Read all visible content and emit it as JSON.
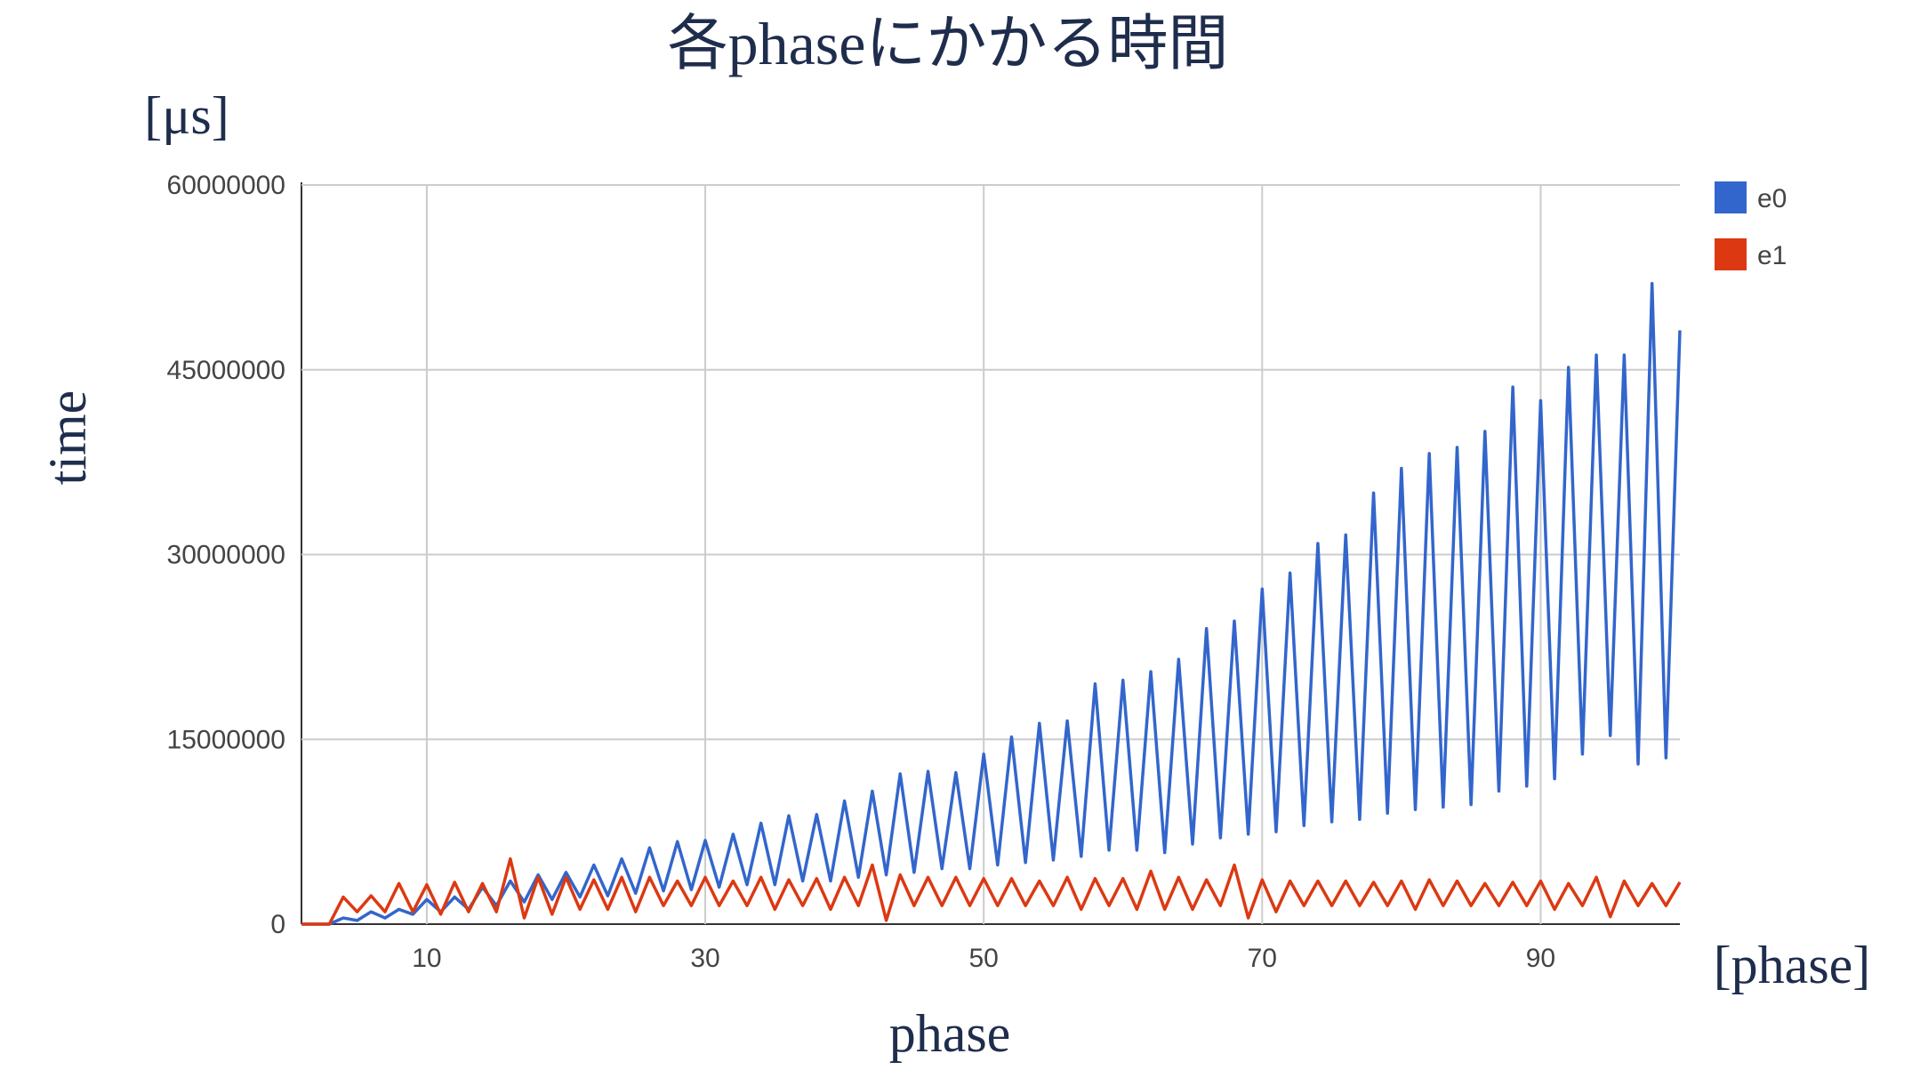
{
  "chart_data": {
    "type": "line",
    "title": "各phaseにかかる時間",
    "y_unit": "[μs]",
    "x_unit": "[phase]",
    "xlabel": "phase",
    "ylabel": "time",
    "x": [
      1,
      2,
      3,
      4,
      5,
      6,
      7,
      8,
      9,
      10,
      11,
      12,
      13,
      14,
      15,
      16,
      17,
      18,
      19,
      20,
      21,
      22,
      23,
      24,
      25,
      26,
      27,
      28,
      29,
      30,
      31,
      32,
      33,
      34,
      35,
      36,
      37,
      38,
      39,
      40,
      41,
      42,
      43,
      44,
      45,
      46,
      47,
      48,
      49,
      50,
      51,
      52,
      53,
      54,
      55,
      56,
      57,
      58,
      59,
      60,
      61,
      62,
      63,
      64,
      65,
      66,
      67,
      68,
      69,
      70,
      71,
      72,
      73,
      74,
      75,
      76,
      77,
      78,
      79,
      80,
      81,
      82,
      83,
      84,
      85,
      86,
      87,
      88,
      89,
      90,
      91,
      92,
      93,
      94,
      95,
      96,
      97,
      98,
      99,
      100
    ],
    "series": [
      {
        "name": "e0",
        "color": "#3366cc",
        "values": [
          0,
          0,
          0,
          500000,
          300000,
          1000000,
          500000,
          1200000,
          800000,
          2000000,
          1000000,
          2200000,
          1200000,
          3000000,
          1500000,
          3500000,
          1800000,
          4000000,
          2000000,
          4200000,
          2200000,
          4800000,
          2300000,
          5300000,
          2500000,
          6200000,
          2700000,
          6700000,
          2800000,
          6800000,
          3000000,
          7300000,
          3200000,
          8200000,
          3200000,
          8800000,
          3500000,
          8900000,
          3500000,
          10000000,
          3800000,
          10800000,
          4000000,
          12200000,
          4200000,
          12400000,
          4500000,
          12300000,
          4500000,
          13800000,
          4800000,
          15200000,
          5000000,
          16300000,
          5200000,
          16500000,
          5500000,
          19500000,
          6000000,
          19800000,
          6000000,
          20500000,
          5800000,
          21500000,
          6500000,
          24000000,
          7000000,
          24600000,
          7300000,
          27200000,
          7500000,
          28500000,
          8000000,
          30900000,
          8300000,
          31600000,
          8500000,
          35000000,
          9000000,
          37000000,
          9300000,
          38200000,
          9500000,
          38700000,
          9700000,
          40000000,
          10800000,
          43600000,
          11200000,
          42500000,
          11800000,
          45200000,
          13800000,
          46200000,
          15300000,
          46200000,
          13000000,
          52000000,
          13500000,
          48200000
        ]
      },
      {
        "name": "e1",
        "color": "#dc3912",
        "values": [
          0,
          0,
          0,
          2200000,
          1000000,
          2300000,
          1000000,
          3300000,
          1000000,
          3200000,
          800000,
          3400000,
          1000000,
          3300000,
          1000000,
          5300000,
          500000,
          3800000,
          800000,
          3800000,
          1200000,
          3600000,
          1200000,
          3800000,
          1000000,
          3800000,
          1500000,
          3500000,
          1500000,
          3800000,
          1500000,
          3500000,
          1500000,
          3800000,
          1200000,
          3600000,
          1500000,
          3700000,
          1200000,
          3800000,
          1500000,
          4800000,
          300000,
          4000000,
          1500000,
          3800000,
          1500000,
          3800000,
          1500000,
          3700000,
          1500000,
          3700000,
          1500000,
          3500000,
          1500000,
          3800000,
          1200000,
          3700000,
          1500000,
          3700000,
          1200000,
          4300000,
          1200000,
          3800000,
          1200000,
          3600000,
          1500000,
          4800000,
          500000,
          3600000,
          1000000,
          3500000,
          1500000,
          3500000,
          1500000,
          3500000,
          1500000,
          3400000,
          1500000,
          3500000,
          1200000,
          3600000,
          1500000,
          3500000,
          1500000,
          3300000,
          1500000,
          3400000,
          1500000,
          3500000,
          1200000,
          3300000,
          1500000,
          3800000,
          600000,
          3500000,
          1500000,
          3300000,
          1500000,
          3400000
        ]
      }
    ],
    "xlim": [
      1,
      100
    ],
    "xticks": [
      10,
      30,
      50,
      70,
      90
    ],
    "ylim": [
      0,
      60000000
    ],
    "yticks": [
      0,
      15000000,
      30000000,
      45000000,
      60000000
    ],
    "grid": true,
    "legend": "right"
  }
}
